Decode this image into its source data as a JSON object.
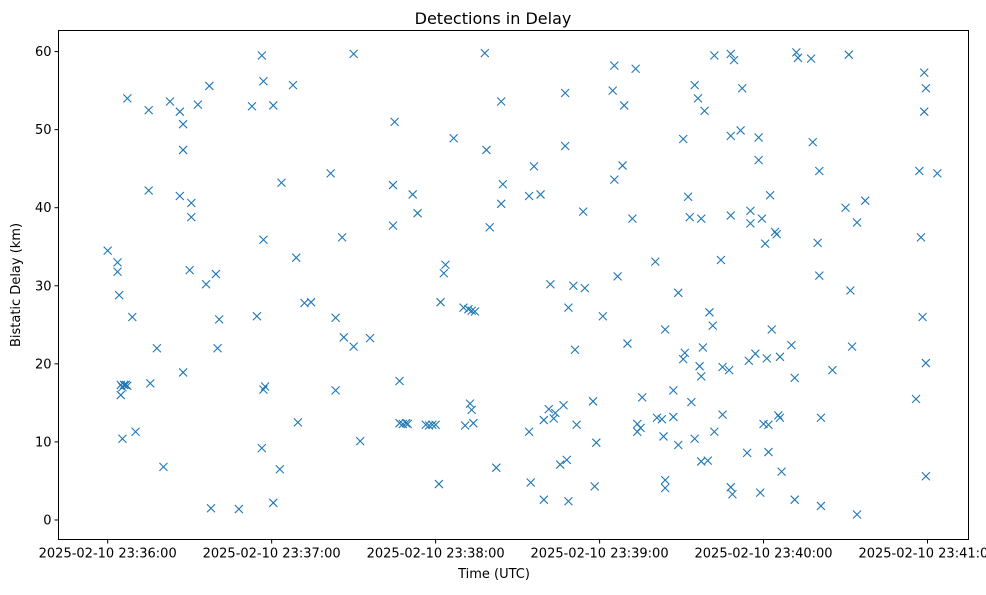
{
  "chart_data": {
    "type": "scatter",
    "title": "Detections in Delay",
    "xlabel": "Time (UTC)",
    "ylabel": "Bistatic Delay (km)",
    "marker": "x",
    "color": "#1f77b4",
    "xlim": [
      -0.3,
      5.25
    ],
    "ylim": [
      -2.5,
      62.7
    ],
    "xticks": [
      0,
      1,
      2,
      3,
      4,
      5
    ],
    "xticklabels": [
      "2025-02-10 23:36:00",
      "2025-02-10 23:37:00",
      "2025-02-10 23:38:00",
      "2025-02-10 23:39:00",
      "2025-02-10 23:40:00",
      "2025-02-10 23:41:00"
    ],
    "yticks": [
      0,
      10,
      20,
      30,
      40,
      50,
      60
    ],
    "yticklabels": [
      "0",
      "10",
      "20",
      "30",
      "40",
      "50",
      "60"
    ],
    "grid": false,
    "x_note": "minutes after 2025-02-10 23:36:00",
    "points": [
      [
        0.0,
        34.5
      ],
      [
        0.06,
        33.0
      ],
      [
        0.06,
        31.8
      ],
      [
        0.07,
        28.8
      ],
      [
        0.08,
        17.3
      ],
      [
        0.09,
        17.0
      ],
      [
        0.1,
        17.3
      ],
      [
        0.08,
        16.0
      ],
      [
        0.09,
        10.4
      ],
      [
        0.11,
        17.3
      ],
      [
        0.12,
        17.2
      ],
      [
        0.12,
        54.0
      ],
      [
        0.15,
        26.0
      ],
      [
        0.17,
        11.3
      ],
      [
        0.25,
        42.2
      ],
      [
        0.25,
        52.5
      ],
      [
        0.26,
        17.5
      ],
      [
        0.3,
        22.0
      ],
      [
        0.34,
        6.8
      ],
      [
        0.38,
        53.6
      ],
      [
        0.44,
        41.5
      ],
      [
        0.44,
        52.3
      ],
      [
        0.46,
        50.7
      ],
      [
        0.46,
        47.4
      ],
      [
        0.46,
        18.9
      ],
      [
        0.51,
        40.6
      ],
      [
        0.51,
        38.8
      ],
      [
        0.5,
        32.0
      ],
      [
        0.55,
        53.2
      ],
      [
        0.6,
        30.2
      ],
      [
        0.62,
        55.6
      ],
      [
        0.63,
        1.5
      ],
      [
        0.66,
        31.5
      ],
      [
        0.67,
        22.0
      ],
      [
        0.68,
        25.7
      ],
      [
        0.8,
        1.4
      ],
      [
        0.88,
        53.0
      ],
      [
        0.91,
        26.1
      ],
      [
        0.94,
        59.5
      ],
      [
        0.94,
        9.2
      ],
      [
        0.95,
        56.2
      ],
      [
        0.95,
        35.9
      ],
      [
        0.95,
        16.7
      ],
      [
        0.96,
        17.1
      ],
      [
        1.01,
        53.1
      ],
      [
        1.01,
        2.2
      ],
      [
        1.05,
        6.5
      ],
      [
        1.06,
        43.2
      ],
      [
        1.13,
        55.7
      ],
      [
        1.15,
        33.6
      ],
      [
        1.16,
        12.5
      ],
      [
        1.2,
        27.8
      ],
      [
        1.24,
        27.9
      ],
      [
        1.36,
        44.4
      ],
      [
        1.39,
        25.9
      ],
      [
        1.39,
        16.6
      ],
      [
        1.43,
        36.2
      ],
      [
        1.44,
        23.4
      ],
      [
        1.5,
        59.7
      ],
      [
        1.5,
        22.2
      ],
      [
        1.54,
        10.1
      ],
      [
        1.6,
        23.3
      ],
      [
        1.74,
        42.9
      ],
      [
        1.74,
        37.7
      ],
      [
        1.75,
        51.0
      ],
      [
        1.78,
        17.8
      ],
      [
        1.78,
        12.4
      ],
      [
        1.8,
        12.3
      ],
      [
        1.82,
        12.4
      ],
      [
        1.83,
        12.3
      ],
      [
        1.86,
        41.7
      ],
      [
        1.89,
        39.3
      ],
      [
        1.94,
        12.2
      ],
      [
        1.96,
        12.1
      ],
      [
        1.98,
        12.2
      ],
      [
        2.0,
        12.2
      ],
      [
        2.02,
        4.6
      ],
      [
        2.03,
        27.9
      ],
      [
        2.05,
        31.6
      ],
      [
        2.06,
        32.7
      ],
      [
        2.11,
        48.9
      ],
      [
        2.17,
        27.2
      ],
      [
        2.18,
        12.1
      ],
      [
        2.2,
        27.0
      ],
      [
        2.21,
        14.9
      ],
      [
        2.22,
        26.8
      ],
      [
        2.22,
        14.1
      ],
      [
        2.23,
        12.4
      ],
      [
        2.24,
        26.7
      ],
      [
        2.3,
        59.8
      ],
      [
        2.31,
        47.4
      ],
      [
        2.33,
        37.5
      ],
      [
        2.37,
        6.7
      ],
      [
        2.4,
        53.6
      ],
      [
        2.4,
        40.5
      ],
      [
        2.41,
        43.0
      ],
      [
        2.57,
        41.5
      ],
      [
        2.57,
        11.3
      ],
      [
        2.58,
        4.8
      ],
      [
        2.6,
        45.3
      ],
      [
        2.64,
        41.7
      ],
      [
        2.66,
        2.6
      ],
      [
        2.66,
        12.8
      ],
      [
        2.69,
        14.2
      ],
      [
        2.7,
        30.2
      ],
      [
        2.72,
        13.0
      ],
      [
        2.73,
        13.7
      ],
      [
        2.76,
        7.1
      ],
      [
        2.78,
        14.7
      ],
      [
        2.79,
        54.7
      ],
      [
        2.79,
        47.9
      ],
      [
        2.8,
        7.7
      ],
      [
        2.81,
        27.2
      ],
      [
        2.81,
        2.4
      ],
      [
        2.84,
        30.0
      ],
      [
        2.85,
        21.8
      ],
      [
        2.86,
        12.2
      ],
      [
        2.9,
        39.5
      ],
      [
        2.91,
        29.7
      ],
      [
        2.96,
        15.2
      ],
      [
        2.97,
        4.3
      ],
      [
        2.98,
        9.9
      ],
      [
        3.02,
        26.1
      ],
      [
        3.08,
        55.0
      ],
      [
        3.09,
        58.2
      ],
      [
        3.09,
        43.6
      ],
      [
        3.11,
        31.2
      ],
      [
        3.14,
        45.4
      ],
      [
        3.15,
        53.1
      ],
      [
        3.17,
        22.6
      ],
      [
        3.2,
        38.6
      ],
      [
        3.22,
        57.8
      ],
      [
        3.23,
        12.3
      ],
      [
        3.23,
        11.3
      ],
      [
        3.25,
        11.8
      ],
      [
        3.26,
        15.7
      ],
      [
        3.34,
        33.1
      ],
      [
        3.35,
        13.1
      ],
      [
        3.38,
        12.9
      ],
      [
        3.39,
        10.7
      ],
      [
        3.4,
        24.4
      ],
      [
        3.4,
        4.1
      ],
      [
        3.4,
        5.1
      ],
      [
        3.45,
        16.6
      ],
      [
        3.45,
        13.2
      ],
      [
        3.48,
        9.6
      ],
      [
        3.48,
        29.1
      ],
      [
        3.51,
        48.8
      ],
      [
        3.51,
        20.6
      ],
      [
        3.52,
        21.4
      ],
      [
        3.54,
        41.4
      ],
      [
        3.55,
        38.8
      ],
      [
        3.56,
        15.1
      ],
      [
        3.58,
        10.4
      ],
      [
        3.58,
        55.7
      ],
      [
        3.6,
        54.0
      ],
      [
        3.61,
        19.7
      ],
      [
        3.62,
        18.4
      ],
      [
        3.62,
        7.5
      ],
      [
        3.62,
        38.6
      ],
      [
        3.63,
        22.1
      ],
      [
        3.64,
        52.4
      ],
      [
        3.66,
        7.6
      ],
      [
        3.67,
        26.6
      ],
      [
        3.69,
        24.9
      ],
      [
        3.7,
        11.3
      ],
      [
        3.7,
        59.5
      ],
      [
        3.74,
        33.3
      ],
      [
        3.75,
        19.6
      ],
      [
        3.75,
        13.5
      ],
      [
        3.79,
        19.2
      ],
      [
        3.8,
        59.7
      ],
      [
        3.8,
        49.2
      ],
      [
        3.8,
        39.0
      ],
      [
        3.8,
        4.2
      ],
      [
        3.81,
        3.3
      ],
      [
        3.82,
        58.9
      ],
      [
        3.86,
        49.9
      ],
      [
        3.87,
        55.3
      ],
      [
        3.9,
        8.6
      ],
      [
        3.91,
        20.4
      ],
      [
        3.92,
        39.6
      ],
      [
        3.92,
        38.0
      ],
      [
        3.95,
        21.3
      ],
      [
        3.97,
        49.0
      ],
      [
        3.97,
        46.1
      ],
      [
        3.98,
        3.5
      ],
      [
        3.99,
        38.6
      ],
      [
        4.0,
        12.3
      ],
      [
        4.01,
        35.4
      ],
      [
        4.02,
        20.7
      ],
      [
        4.03,
        12.2
      ],
      [
        4.03,
        8.7
      ],
      [
        4.04,
        41.6
      ],
      [
        4.05,
        24.4
      ],
      [
        4.07,
        36.9
      ],
      [
        4.08,
        36.6
      ],
      [
        4.09,
        13.4
      ],
      [
        4.1,
        13.1
      ],
      [
        4.1,
        20.9
      ],
      [
        4.11,
        6.2
      ],
      [
        4.17,
        22.4
      ],
      [
        4.19,
        18.2
      ],
      [
        4.19,
        2.6
      ],
      [
        4.2,
        59.9
      ],
      [
        4.21,
        59.2
      ],
      [
        4.29,
        59.1
      ],
      [
        4.3,
        48.4
      ],
      [
        4.33,
        35.5
      ],
      [
        4.34,
        44.7
      ],
      [
        4.34,
        31.3
      ],
      [
        4.35,
        13.1
      ],
      [
        4.35,
        1.8
      ],
      [
        4.42,
        19.2
      ],
      [
        4.5,
        40.0
      ],
      [
        4.52,
        59.6
      ],
      [
        4.53,
        29.4
      ],
      [
        4.54,
        22.2
      ],
      [
        4.57,
        38.1
      ],
      [
        4.57,
        0.7
      ],
      [
        4.62,
        40.9
      ],
      [
        4.93,
        15.5
      ],
      [
        4.95,
        44.7
      ],
      [
        4.96,
        36.2
      ],
      [
        4.97,
        26.0
      ],
      [
        4.98,
        57.3
      ],
      [
        4.98,
        52.3
      ],
      [
        4.99,
        55.3
      ],
      [
        4.99,
        20.1
      ],
      [
        4.99,
        5.6
      ],
      [
        5.06,
        44.4
      ]
    ]
  }
}
